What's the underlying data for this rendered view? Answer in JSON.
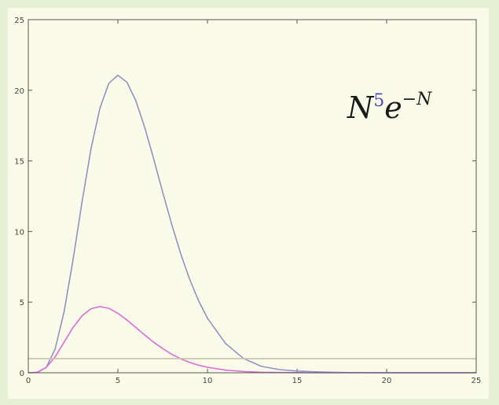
{
  "chart_data": {
    "type": "line",
    "title": "",
    "xlabel": "",
    "ylabel": "",
    "xlim": [
      0,
      25
    ],
    "ylim": [
      0,
      25
    ],
    "x_ticks": [
      "0",
      "5",
      "10",
      "15",
      "20",
      "25"
    ],
    "y_ticks": [
      "0",
      "5",
      "10",
      "15",
      "20",
      "25"
    ],
    "grid": false,
    "annotation": {
      "base": "N",
      "exponent": "5",
      "factor": "e",
      "factor_exponent": "−N"
    },
    "series": [
      {
        "color": "#8f93c6",
        "x": [
          0,
          0.5,
          1,
          1.5,
          2,
          2.5,
          3,
          3.5,
          4,
          4.5,
          5,
          5.5,
          6,
          6.5,
          7,
          7.5,
          8,
          8.5,
          9,
          9.5,
          10,
          11,
          12,
          13,
          14,
          15,
          16,
          17,
          18,
          19,
          20,
          21,
          22,
          23,
          24,
          25
        ],
        "y": [
          0,
          0.02,
          0.37,
          1.69,
          4.33,
          8.02,
          12.1,
          15.85,
          18.75,
          20.5,
          21.06,
          20.58,
          19.27,
          17.37,
          15.13,
          12.79,
          10.53,
          8.45,
          6.64,
          5.11,
          3.86,
          2.09,
          1.02,
          0.46,
          0.23,
          0.12,
          0.07,
          0.03,
          0.01,
          0.01,
          0,
          0,
          0,
          0,
          0,
          0
        ]
      },
      {
        "color": "#e06bd8",
        "x": [
          0,
          0.5,
          1,
          1.5,
          2,
          2.5,
          3,
          3.5,
          4,
          4.5,
          5,
          5.5,
          6,
          6.5,
          7,
          7.5,
          8,
          8.5,
          9,
          9.5,
          10,
          11,
          12,
          13,
          14,
          15,
          16,
          17,
          18,
          19,
          20,
          21,
          22,
          23,
          24,
          25
        ],
        "y": [
          0,
          0.04,
          0.37,
          1.13,
          2.17,
          3.21,
          4.03,
          4.53,
          4.69,
          4.56,
          4.21,
          3.74,
          3.21,
          2.67,
          2.16,
          1.71,
          1.32,
          0.99,
          0.74,
          0.54,
          0.39,
          0.19,
          0.09,
          0.04,
          0.02,
          0.01,
          0,
          0,
          0,
          0,
          0,
          0,
          0,
          0,
          0,
          0
        ]
      },
      {
        "color": "#c9c2a8",
        "x": [
          0,
          25
        ],
        "y": [
          1,
          1
        ]
      }
    ]
  }
}
